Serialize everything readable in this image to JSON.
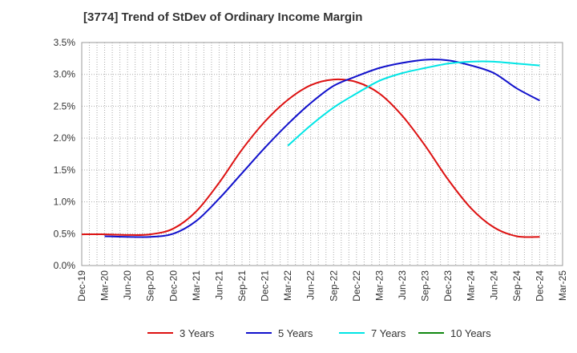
{
  "chart_data": {
    "type": "line",
    "title": "[3774]  Trend of StDev of Ordinary Income Margin",
    "xlabel": "",
    "ylabel": "",
    "x": [
      "Dec-19",
      "Mar-20",
      "Jun-20",
      "Sep-20",
      "Dec-20",
      "Mar-21",
      "Jun-21",
      "Sep-21",
      "Dec-21",
      "Mar-22",
      "Jun-22",
      "Sep-22",
      "Dec-22",
      "Mar-23",
      "Jun-23",
      "Sep-23",
      "Dec-23",
      "Mar-24",
      "Jun-24",
      "Sep-24",
      "Dec-24",
      "Mar-25"
    ],
    "y_ticks": [
      "0.0%",
      "0.5%",
      "1.0%",
      "1.5%",
      "2.0%",
      "2.5%",
      "3.0%",
      "3.5%"
    ],
    "ylim": [
      0,
      3.5
    ],
    "y_unit": "%",
    "grid": true,
    "legend_position": "bottom",
    "series": [
      {
        "name": "3 Years",
        "color": "#dd1111",
        "values": [
          0.49,
          0.49,
          0.48,
          0.49,
          0.58,
          0.85,
          1.3,
          1.82,
          2.26,
          2.6,
          2.83,
          2.92,
          2.88,
          2.7,
          2.35,
          1.88,
          1.35,
          0.9,
          0.6,
          0.46,
          0.45,
          null
        ]
      },
      {
        "name": "5 Years",
        "color": "#1111cc",
        "values": [
          null,
          0.46,
          0.45,
          0.45,
          0.5,
          0.7,
          1.05,
          1.45,
          1.85,
          2.22,
          2.55,
          2.82,
          2.97,
          3.1,
          3.18,
          3.23,
          3.22,
          3.14,
          3.02,
          2.78,
          2.59,
          null
        ]
      },
      {
        "name": "7 Years",
        "color": "#00e5e5",
        "values": [
          null,
          null,
          null,
          null,
          null,
          null,
          null,
          null,
          null,
          1.88,
          2.2,
          2.48,
          2.7,
          2.9,
          3.02,
          3.1,
          3.17,
          3.2,
          3.2,
          3.17,
          3.14,
          null
        ]
      },
      {
        "name": "10 Years",
        "color": "#118811",
        "values": [
          null,
          null,
          null,
          null,
          null,
          null,
          null,
          null,
          null,
          null,
          null,
          null,
          null,
          null,
          null,
          null,
          null,
          null,
          null,
          null,
          null,
          null
        ]
      }
    ]
  }
}
